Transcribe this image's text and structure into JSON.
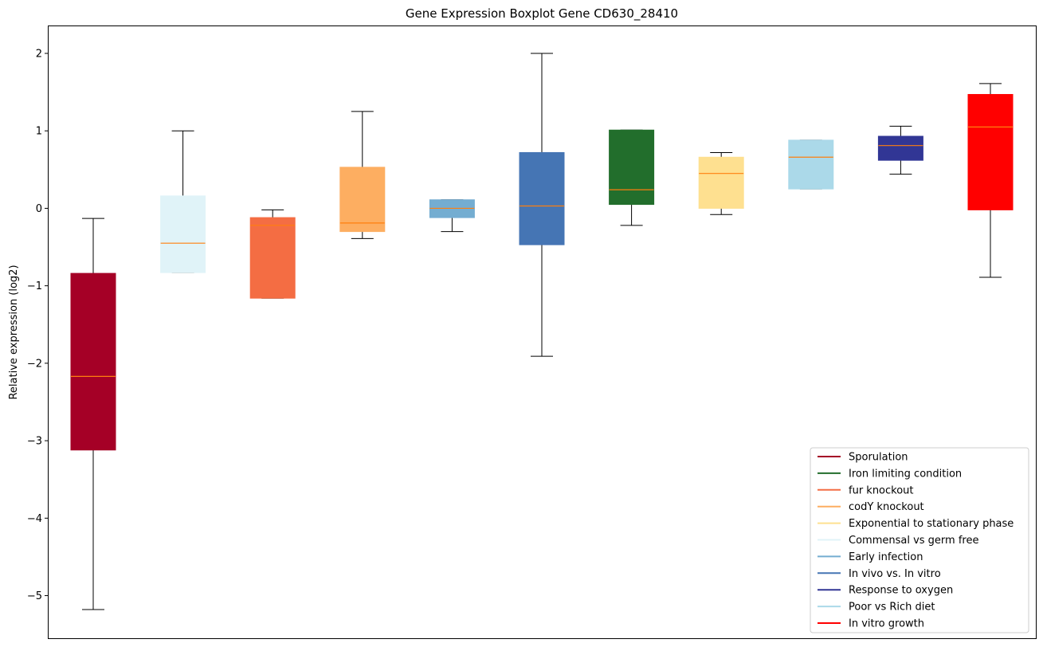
{
  "chart_data": {
    "type": "boxplot",
    "title": "Gene Expression Boxplot Gene CD630_28410",
    "xlabel": "",
    "ylabel": "Relative expression (log2)",
    "ylim": [
      -5.55,
      2.36
    ],
    "yticks": [
      2,
      1,
      0,
      -1,
      -2,
      -3,
      -4,
      -5
    ],
    "ytick_labels": [
      "2",
      "1",
      "0",
      "−1",
      "−2",
      "−3",
      "−4",
      "−5"
    ],
    "legend_position": "lower-right",
    "median_color": "#ff7f0e",
    "boxes": [
      {
        "name": "Sporulation",
        "color": "#a50026",
        "whislo": -5.18,
        "q1": -3.12,
        "med": -2.17,
        "q3": -0.84,
        "whishi": -0.13
      },
      {
        "name": "Commensal vs germ free",
        "color": "#e0f3f8",
        "whislo": -0.83,
        "q1": -0.83,
        "med": -0.45,
        "q3": 0.16,
        "whishi": 1.0
      },
      {
        "name": "fur knockout",
        "color": "#f46d43",
        "whislo": -1.16,
        "q1": -1.16,
        "med": -0.22,
        "q3": -0.12,
        "whishi": -0.02
      },
      {
        "name": "codY knockout",
        "color": "#fdae61",
        "whislo": -0.39,
        "q1": -0.3,
        "med": -0.19,
        "q3": 0.53,
        "whishi": 1.25
      },
      {
        "name": "Early infection",
        "color": "#74add1",
        "whislo": -0.3,
        "q1": -0.12,
        "med": 0.0,
        "q3": 0.11,
        "whishi": 0.11
      },
      {
        "name": "In vivo vs. In vitro",
        "color": "#4575b4",
        "whislo": -1.91,
        "q1": -0.47,
        "med": 0.03,
        "q3": 0.72,
        "whishi": 2.0
      },
      {
        "name": "Iron limiting condition",
        "color": "#226e2c",
        "whislo": -0.22,
        "q1": 0.05,
        "med": 0.24,
        "q3": 1.01,
        "whishi": 1.01
      },
      {
        "name": "Exponential to stationary phase",
        "color": "#fee090",
        "whislo": -0.08,
        "q1": 0.0,
        "med": 0.45,
        "q3": 0.66,
        "whishi": 0.72
      },
      {
        "name": "Poor vs Rich diet",
        "color": "#abd9e9",
        "whislo": 0.25,
        "q1": 0.25,
        "med": 0.66,
        "q3": 0.88,
        "whishi": 0.88
      },
      {
        "name": "Response to oxygen",
        "color": "#313695",
        "whislo": 0.44,
        "q1": 0.62,
        "med": 0.81,
        "q3": 0.93,
        "whishi": 1.06
      },
      {
        "name": "In vitro growth",
        "color": "#ff0000",
        "whislo": -0.89,
        "q1": -0.02,
        "med": 1.05,
        "q3": 1.47,
        "whishi": 1.61
      }
    ],
    "legend": [
      {
        "label": "Sporulation",
        "color": "#a50026"
      },
      {
        "label": "Iron limiting condition",
        "color": "#226e2c"
      },
      {
        "label": "fur knockout",
        "color": "#f46d43"
      },
      {
        "label": "codY knockout",
        "color": "#fdae61"
      },
      {
        "label": "Exponential to stationary phase",
        "color": "#fee090"
      },
      {
        "label": "Commensal vs germ free",
        "color": "#e0f3f8"
      },
      {
        "label": "Early infection",
        "color": "#74add1"
      },
      {
        "label": "In vivo vs. In vitro",
        "color": "#4575b4"
      },
      {
        "label": "Response to oxygen",
        "color": "#313695"
      },
      {
        "label": "Poor vs Rich diet",
        "color": "#abd9e9"
      },
      {
        "label": "In vitro growth",
        "color": "#ff0000"
      }
    ]
  }
}
